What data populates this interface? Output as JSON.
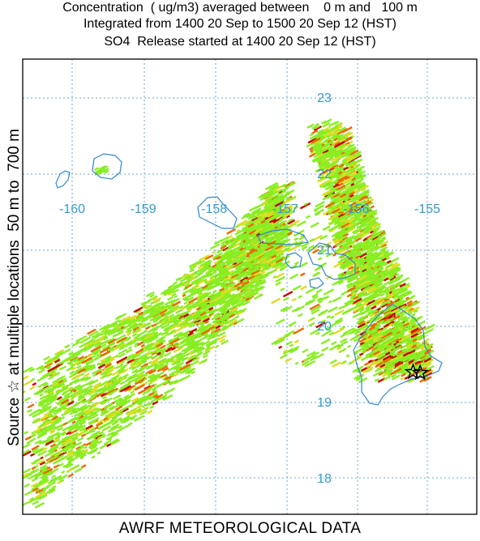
{
  "header": {
    "line1": "Concentration  ( ug/m3) averaged between    0 m and   100 m",
    "line2": "Integrated from 1400 20 Sep to 1500 20 Sep 12 (HST)",
    "line3": "SO4  Release started at 1400 20 Sep 12 (HST)"
  },
  "side_label": "Source ☆ at multiple locations  50 m to  700 m",
  "footer": "AWRF METEOROLOGICAL DATA",
  "grid": {
    "longitudes": [
      "-160",
      "-159",
      "-158",
      "-157",
      "-156",
      "-155"
    ],
    "latitudes": [
      "23",
      "22",
      "21",
      "20",
      "19",
      "18"
    ]
  },
  "colors": {
    "frame": "#000000",
    "grid": "#66aadd",
    "grid_label": "#3399cc",
    "coast": "#3388cc",
    "plume_low": "#88ee22",
    "plume_mid": "#dddd22",
    "plume_high": "#ee6600",
    "plume_max": "#cc0000",
    "source_star": "#000000"
  },
  "legend_symbol": "star",
  "sources": [
    {
      "lon": -155.2,
      "lat": 19.4
    },
    {
      "lon": -155.1,
      "lat": 19.39
    }
  ]
}
